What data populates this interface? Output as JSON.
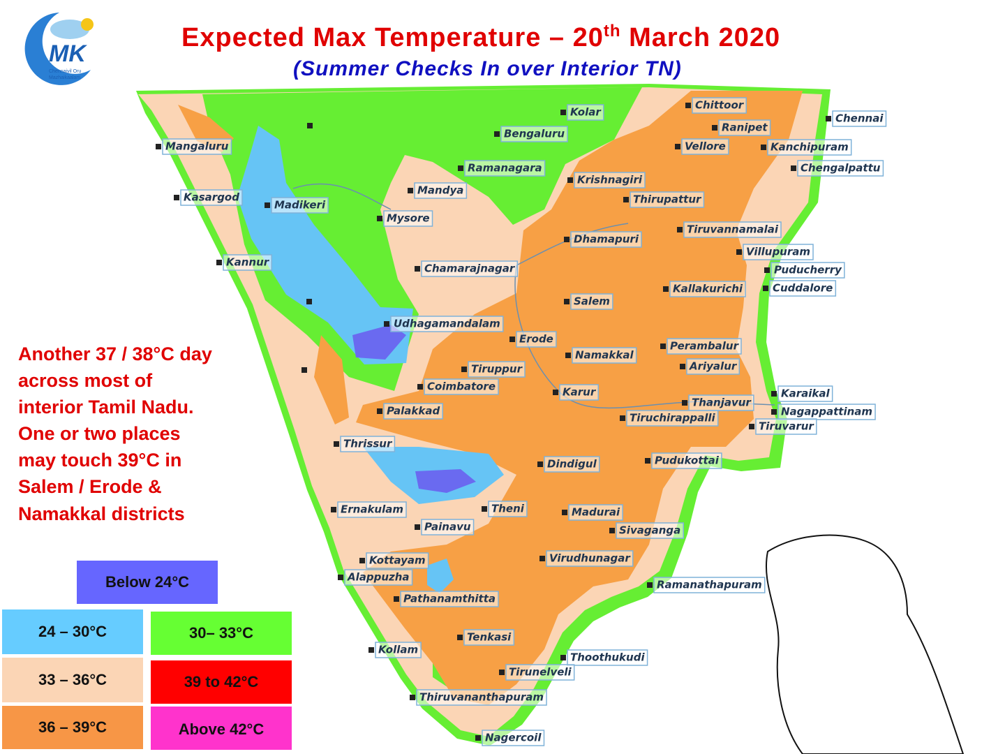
{
  "header": {
    "title_main": "Expected Max Temperature – 20",
    "title_sup": "th",
    "title_end": " March 2020",
    "subtitle": "(Summer Checks In over Interior TN)"
  },
  "logo": {
    "text": "MK",
    "caption": [
      "Chennaiyil Oru",
      "Mazhaikaalam"
    ]
  },
  "note": {
    "lines": [
      "Another 37 / 38°C day",
      "across most of",
      "interior Tamil Nadu.",
      "One or two places",
      "may touch 39°C in",
      "Salem / Erode &",
      "Namakkal districts"
    ]
  },
  "legend": {
    "items": [
      "Below 24°C",
      "24 – 30°C",
      "30– 33°C",
      "33 – 36°C",
      "39 to 42°C",
      "36 – 39°C",
      "Above 42°C"
    ]
  },
  "cities": [
    "Kolar",
    "Chittoor",
    "Chennai",
    "Ranipet",
    "Bengaluru",
    "Vellore",
    "Kanchipuram",
    "Mangaluru",
    "Ramanagara",
    "Chengalpattu",
    "Krishnagiri",
    "Mandya",
    "Thirupattur",
    "Kasargod",
    "Madikeri",
    "Mysore",
    "Tiruvannamalai",
    "Dhamapuri",
    "Villupuram",
    "Kannur",
    "Chamarajnagar",
    "Puducherry",
    "Kallakurichi",
    "Cuddalore",
    "Salem",
    "Udhagamandalam",
    "Erode",
    "Perambalur",
    "Namakkal",
    "Tiruppur",
    "Ariyalur",
    "Coimbatore",
    "Karur",
    "Karaikal",
    "Thanjavur",
    "Palakkad",
    "Nagappattinam",
    "Tiruchirappalli",
    "Tiruvarur",
    "Thrissur",
    "Pudukottai",
    "Dindigul",
    "Ernakulam",
    "Theni",
    "Madurai",
    "Painavu",
    "Sivaganga",
    "Kottayam",
    "Virudhunagar",
    "Alappuzha",
    "Ramanathapuram",
    "Pathanamthitta",
    "Tenkasi",
    "Kollam",
    "Thoothukudi",
    "Tirunelveli",
    "Thiruvananthapuram",
    "Nagercoil"
  ]
}
